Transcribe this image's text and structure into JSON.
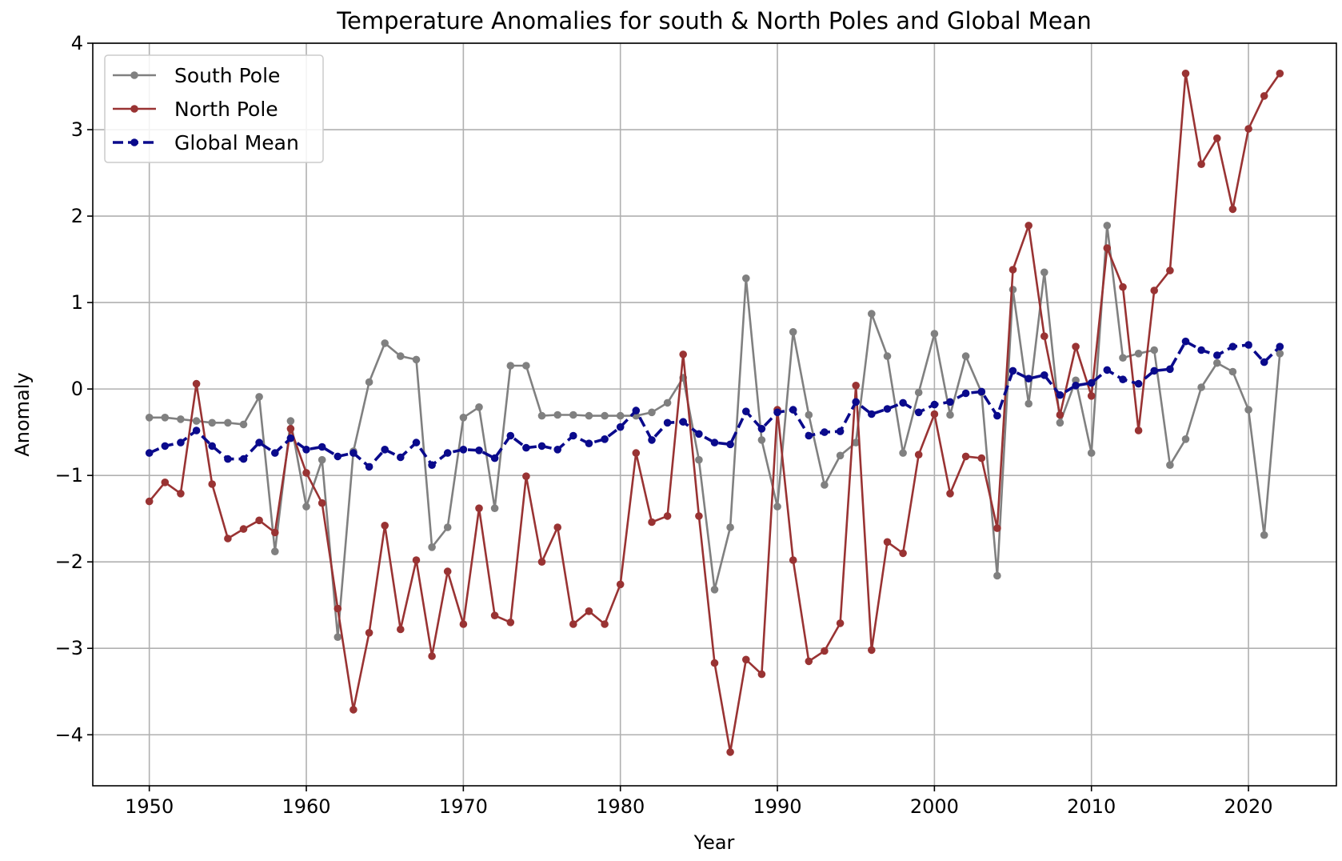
{
  "chart_data": {
    "type": "line",
    "title": "Temperature Anomalies for south & North Poles and Global Mean",
    "xlabel": "Year",
    "ylabel": "Anomaly",
    "xlim": [
      1946.4,
      2025.6
    ],
    "ylim": [
      -4.59,
      4.0
    ],
    "xticks": [
      1950,
      1960,
      1970,
      1980,
      1990,
      2000,
      2010,
      2020
    ],
    "xtick_labels": [
      "1950",
      "1960",
      "1970",
      "1980",
      "1990",
      "2000",
      "2010",
      "2020"
    ],
    "yticks": [
      -4,
      -3,
      -2,
      -1,
      0,
      1,
      2,
      3,
      4
    ],
    "ytick_labels": [
      "−4",
      "−3",
      "−2",
      "−1",
      "0",
      "1",
      "2",
      "3",
      "4"
    ],
    "grid": true,
    "legend_position": "top-left",
    "x": [
      1950,
      1951,
      1952,
      1953,
      1954,
      1955,
      1956,
      1957,
      1958,
      1959,
      1960,
      1961,
      1962,
      1963,
      1964,
      1965,
      1966,
      1967,
      1968,
      1969,
      1970,
      1971,
      1972,
      1973,
      1974,
      1975,
      1976,
      1977,
      1978,
      1979,
      1980,
      1981,
      1982,
      1983,
      1984,
      1985,
      1986,
      1987,
      1988,
      1989,
      1990,
      1991,
      1992,
      1993,
      1994,
      1995,
      1996,
      1997,
      1998,
      1999,
      2000,
      2001,
      2002,
      2003,
      2004,
      2005,
      2006,
      2007,
      2008,
      2009,
      2010,
      2011,
      2012,
      2013,
      2014,
      2015,
      2016,
      2017,
      2018,
      2019,
      2020,
      2021,
      2022
    ],
    "series": [
      {
        "name": "South Pole",
        "color": "#808080",
        "linestyle": "solid",
        "values": [
          -0.33,
          -0.33,
          -0.35,
          -0.37,
          -0.39,
          -0.39,
          -0.41,
          -0.09,
          -1.88,
          -0.37,
          -1.36,
          -0.82,
          -2.87,
          -0.72,
          0.08,
          0.53,
          0.38,
          0.34,
          -1.83,
          -1.6,
          -0.33,
          -0.21,
          -1.38,
          0.27,
          0.27,
          -0.31,
          -0.3,
          -0.3,
          -0.31,
          -0.31,
          -0.31,
          -0.31,
          -0.27,
          -0.16,
          0.13,
          -0.82,
          -2.32,
          -1.6,
          1.28,
          -0.59,
          -1.36,
          0.66,
          -0.3,
          -1.11,
          -0.77,
          -0.62,
          0.87,
          0.38,
          -0.74,
          -0.04,
          0.64,
          -0.3,
          0.38,
          -0.04,
          -2.16,
          1.15,
          -0.17,
          1.35,
          -0.39,
          0.1,
          -0.74,
          1.89,
          0.36,
          0.41,
          0.45,
          -0.88,
          -0.58,
          0.02,
          0.3,
          0.2,
          -0.24,
          -1.69,
          0.41
        ]
      },
      {
        "name": "North Pole",
        "color": "#993333",
        "linestyle": "solid",
        "values": [
          -1.3,
          -1.08,
          -1.21,
          0.06,
          -1.1,
          -1.73,
          -1.62,
          -1.52,
          -1.66,
          -0.46,
          -0.97,
          -1.32,
          -2.54,
          -3.71,
          -2.82,
          -1.58,
          -2.78,
          -1.98,
          -3.09,
          -2.11,
          -2.72,
          -1.38,
          -2.62,
          -2.7,
          -1.01,
          -2.0,
          -1.6,
          -2.72,
          -2.57,
          -2.72,
          -2.26,
          -0.74,
          -1.54,
          -1.47,
          0.4,
          -1.47,
          -3.17,
          -4.2,
          -3.13,
          -3.3,
          -0.24,
          -1.98,
          -3.15,
          -3.03,
          -2.71,
          0.04,
          -3.02,
          -1.77,
          -1.9,
          -0.76,
          -0.29,
          -1.21,
          -0.78,
          -0.8,
          -1.61,
          1.38,
          1.89,
          0.61,
          -0.3,
          0.49,
          -0.08,
          1.63,
          1.18,
          -0.48,
          1.14,
          1.37,
          3.65,
          2.6,
          2.9,
          2.08,
          3.01,
          3.39,
          3.65
        ]
      },
      {
        "name": "Global Mean",
        "color": "#0a0a8c",
        "linestyle": "dashed",
        "values": [
          -0.74,
          -0.66,
          -0.62,
          -0.48,
          -0.66,
          -0.81,
          -0.81,
          -0.62,
          -0.74,
          -0.57,
          -0.7,
          -0.67,
          -0.78,
          -0.74,
          -0.9,
          -0.7,
          -0.79,
          -0.62,
          -0.88,
          -0.74,
          -0.7,
          -0.71,
          -0.8,
          -0.54,
          -0.68,
          -0.66,
          -0.7,
          -0.54,
          -0.63,
          -0.58,
          -0.44,
          -0.25,
          -0.59,
          -0.39,
          -0.38,
          -0.52,
          -0.62,
          -0.64,
          -0.26,
          -0.46,
          -0.27,
          -0.24,
          -0.54,
          -0.5,
          -0.49,
          -0.15,
          -0.29,
          -0.23,
          -0.16,
          -0.27,
          -0.18,
          -0.15,
          -0.05,
          -0.03,
          -0.31,
          0.21,
          0.12,
          0.16,
          -0.07,
          0.04,
          0.07,
          0.22,
          0.11,
          0.06,
          0.21,
          0.23,
          0.55,
          0.45,
          0.39,
          0.49,
          0.51,
          0.31,
          0.49
        ]
      }
    ]
  }
}
